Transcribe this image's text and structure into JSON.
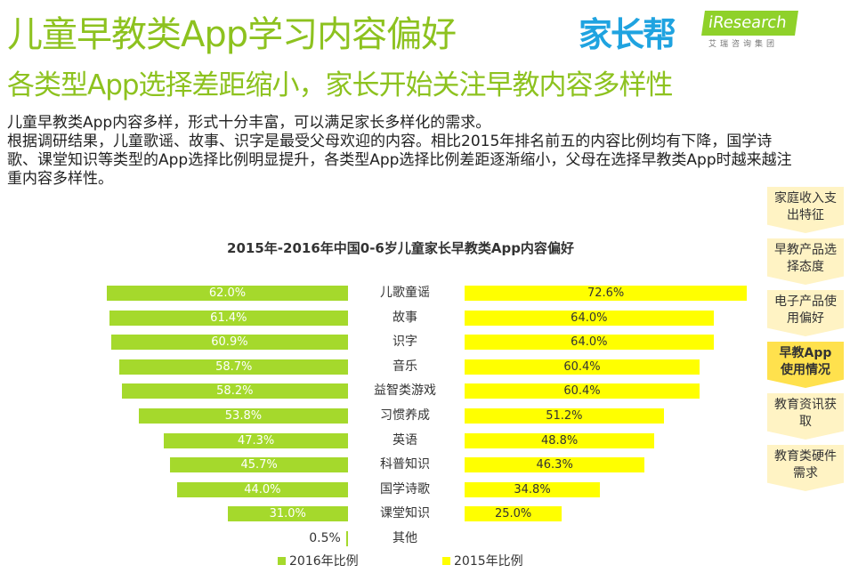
{
  "header": {
    "title": "儿童早教类App学习内容偏好",
    "subtitle": "各类型App选择差距缩小，家长开始关注早教内容多样性",
    "logo_main": "家长帮",
    "logo_iresearch": "iResearch",
    "logo_iresearch_sub": "艾瑞咨询集团"
  },
  "body_text": [
    "儿童早教类App内容多样，形式十分丰富，可以满足家长多样化的需求。",
    "根据调研结果，儿童歌谣、故事、识字是最受父母欢迎的内容。相比2015年排名前五的内容比例均有下降，国学诗歌、课堂知识等类型的App选择比例明显提升，各类型App选择比例差距逐渐缩小，父母在选择早教类App时越来越注重内容多样性。"
  ],
  "nav": [
    {
      "label": "家庭收入支出特征"
    },
    {
      "label": "早教产品选择态度"
    },
    {
      "label": "电子产品使用偏好"
    },
    {
      "label": "早教App使用情况",
      "active": true
    },
    {
      "label": "教育资讯获取"
    },
    {
      "label": "教育类硬件需求"
    }
  ],
  "chart_data": {
    "type": "bar",
    "title": "2015年-2016年中国0-6岁儿童家长早教类App内容偏好",
    "categories": [
      "儿歌童谣",
      "故事",
      "识字",
      "音乐",
      "益智类游戏",
      "习惯养成",
      "英语",
      "科普知识",
      "国学诗歌",
      "课堂知识",
      "其他"
    ],
    "series": [
      {
        "name": "2016年比例",
        "color": "#a5d92c",
        "values": [
          62.0,
          61.4,
          60.9,
          58.7,
          58.2,
          53.8,
          47.3,
          45.7,
          44.0,
          31.0,
          0.5
        ]
      },
      {
        "name": "2015年比例",
        "color": "#ffff00",
        "values": [
          72.6,
          64.0,
          64.0,
          60.4,
          60.4,
          51.2,
          48.8,
          46.3,
          34.8,
          25.0,
          null
        ]
      }
    ],
    "unit": "%"
  }
}
